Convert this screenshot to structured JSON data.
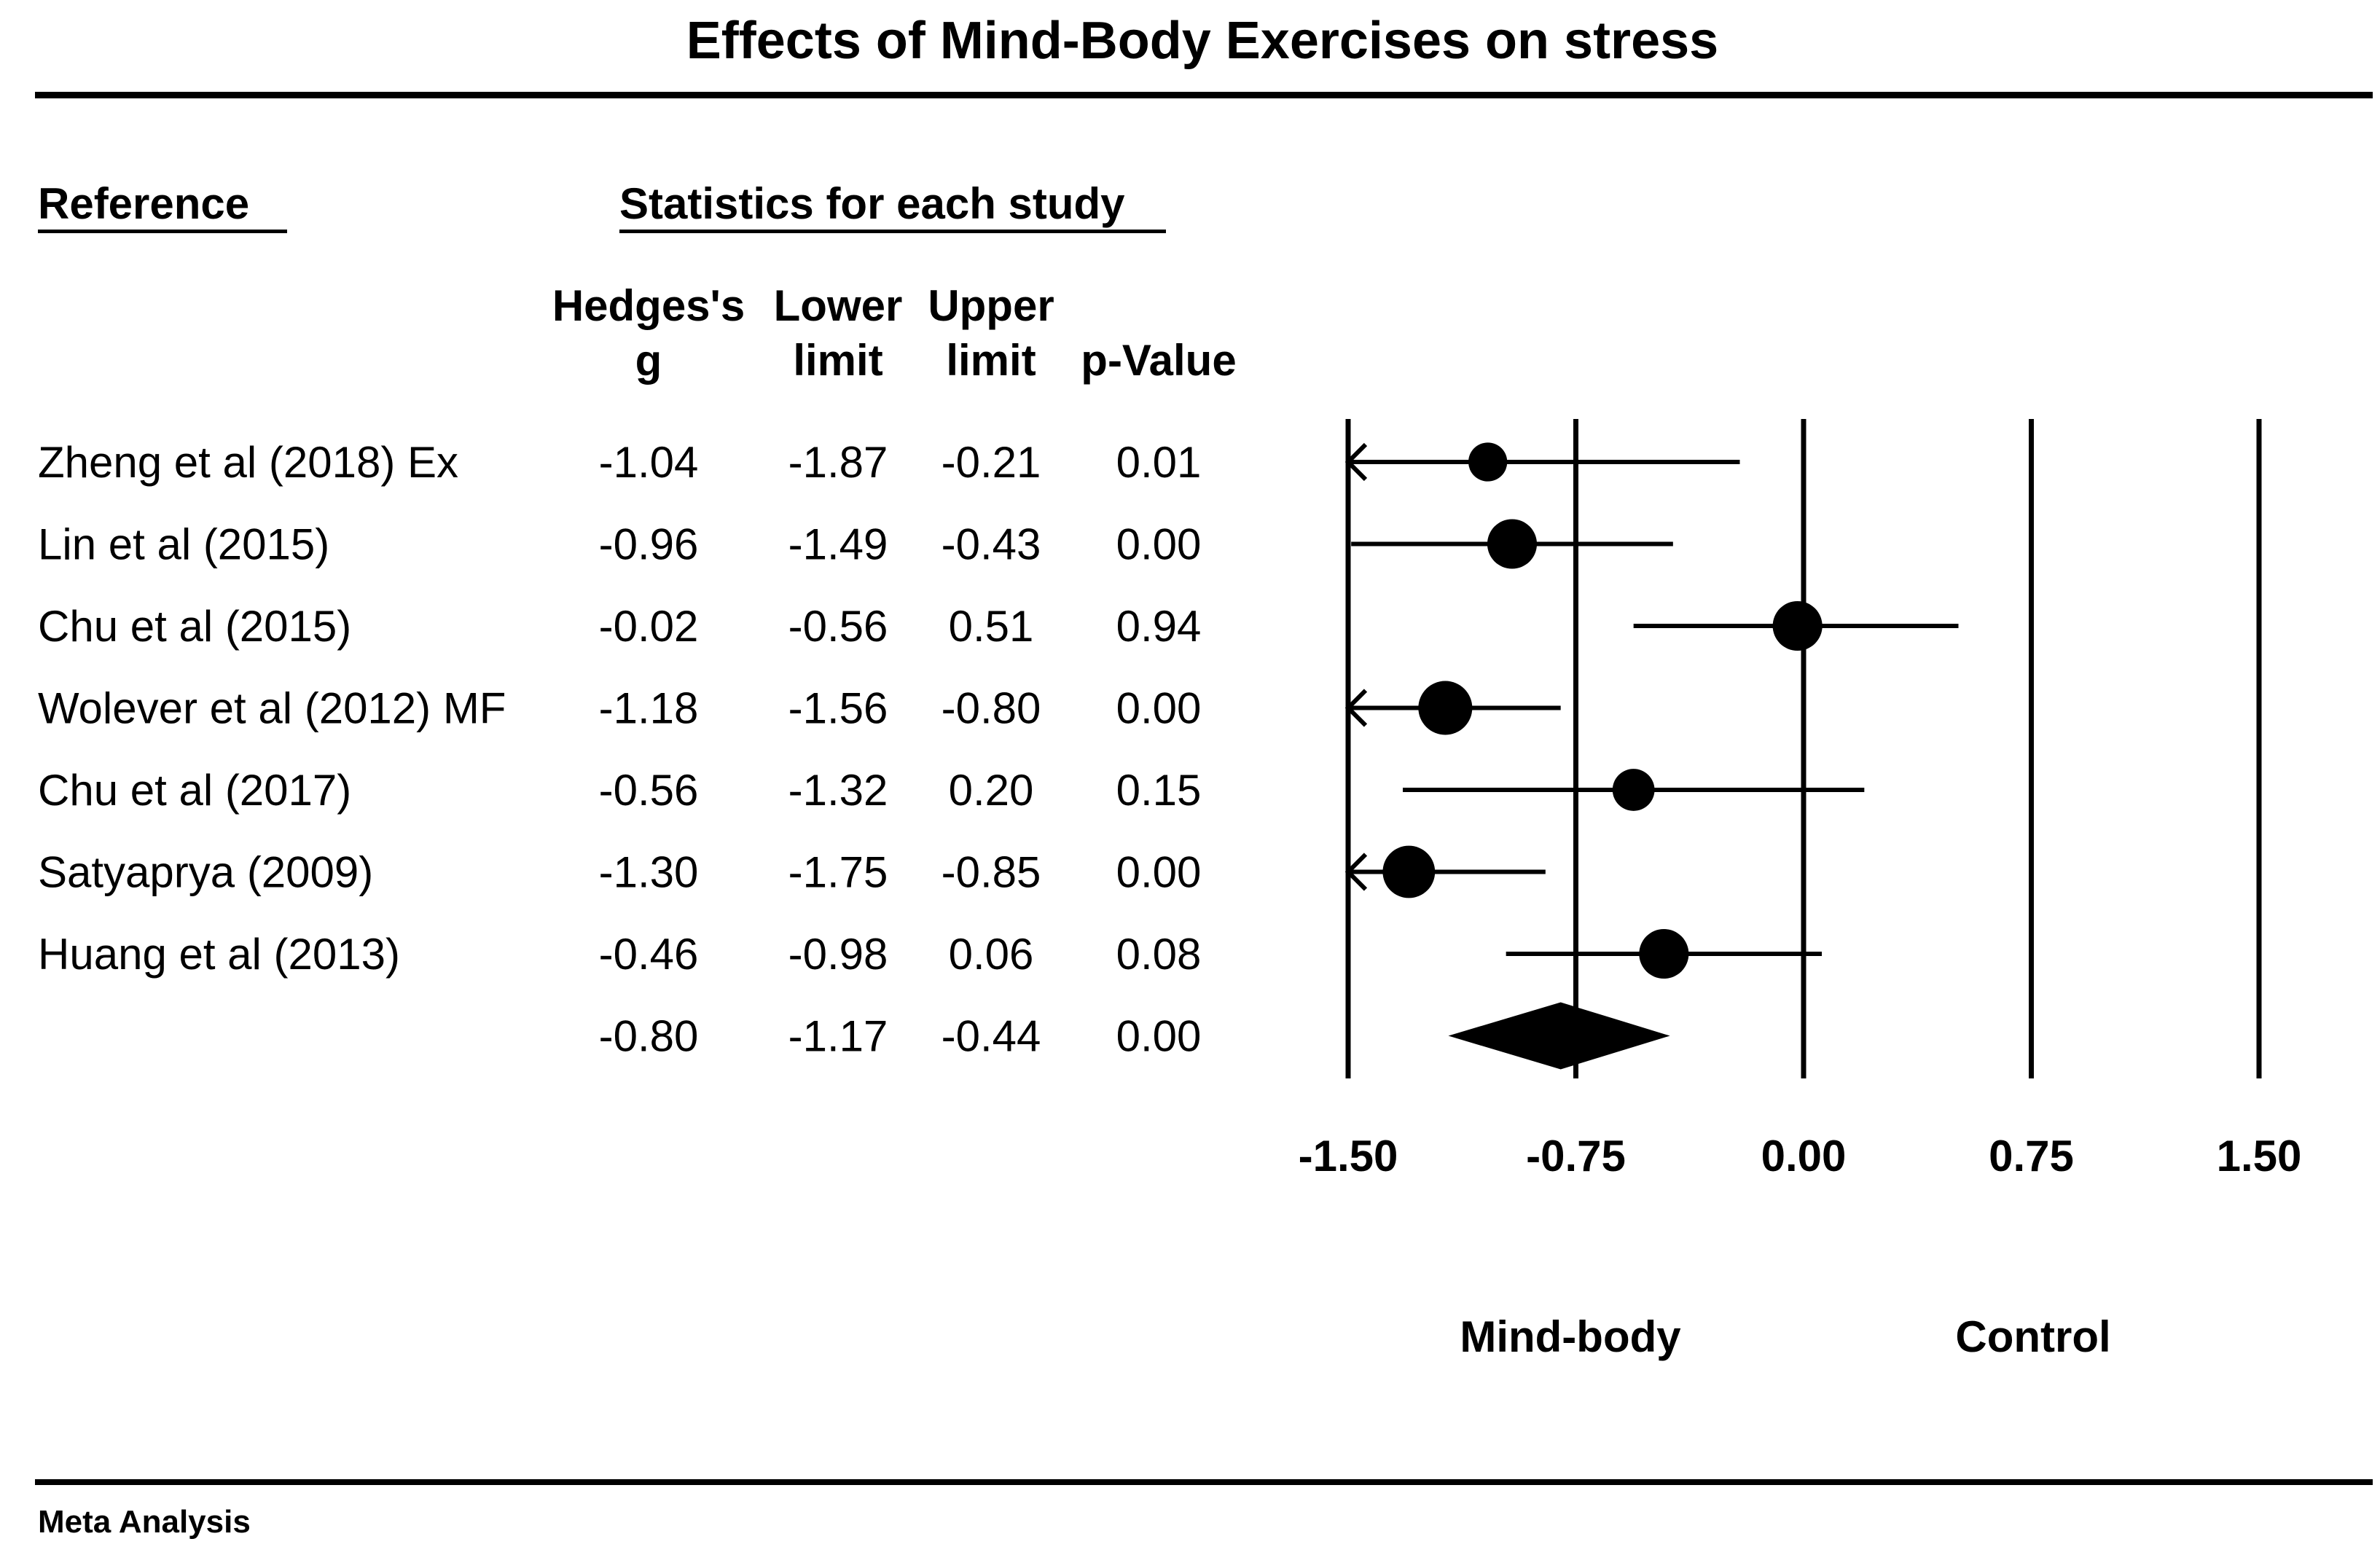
{
  "chart_data": {
    "type": "forest",
    "title": "Effects of Mind-Body Exercises on stress",
    "section_labels": {
      "reference": "Reference",
      "statistics": "Statistics for each study"
    },
    "columns": [
      {
        "key": "g",
        "line1": "Hedges's",
        "line2": "g"
      },
      {
        "key": "lower",
        "line1": "Lower",
        "line2": "limit"
      },
      {
        "key": "upper",
        "line1": "Upper",
        "line2": "limit"
      },
      {
        "key": "p",
        "line1": "",
        "line2": "p-Value"
      }
    ],
    "studies": [
      {
        "reference": "Zheng et al (2018) Ex",
        "g": "-1.04",
        "lower": "-1.87",
        "upper": "-0.21",
        "p": "0.01",
        "g_val": -1.04,
        "lower_val": -1.87,
        "upper_val": -0.21,
        "weight": 0.72
      },
      {
        "reference": "Lin et al (2015)",
        "g": "-0.96",
        "lower": "-1.49",
        "upper": "-0.43",
        "p": "0.00",
        "g_val": -0.96,
        "lower_val": -1.49,
        "upper_val": -0.43,
        "weight": 0.92
      },
      {
        "reference": "Chu et al (2015)",
        "g": "-0.02",
        "lower": "-0.56",
        "upper": "0.51",
        "p": "0.94",
        "g_val": -0.02,
        "lower_val": -0.56,
        "upper_val": 0.51,
        "weight": 0.92
      },
      {
        "reference": "Wolever et al (2012) MF",
        "g": "-1.18",
        "lower": "-1.56",
        "upper": "-0.80",
        "p": "0.00",
        "g_val": -1.18,
        "lower_val": -1.56,
        "upper_val": -0.8,
        "weight": 1.0
      },
      {
        "reference": "Chu et al (2017)",
        "g": "-0.56",
        "lower": "-1.32",
        "upper": "0.20",
        "p": "0.15",
        "g_val": -0.56,
        "lower_val": -1.32,
        "upper_val": 0.2,
        "weight": 0.78
      },
      {
        "reference": "Satyaprya (2009)",
        "g": "-1.30",
        "lower": "-1.75",
        "upper": "-0.85",
        "p": "0.00",
        "g_val": -1.3,
        "lower_val": -1.75,
        "upper_val": -0.85,
        "weight": 0.97
      },
      {
        "reference": "Huang et al (2013)",
        "g": "-0.46",
        "lower": "-0.98",
        "upper": "0.06",
        "p": "0.08",
        "g_val": -0.46,
        "lower_val": -0.98,
        "upper_val": 0.06,
        "weight": 0.92
      }
    ],
    "summary": {
      "g": "-0.80",
      "lower": "-1.17",
      "upper": "-0.44",
      "p": "0.00",
      "g_val": -0.8,
      "lower_val": -1.17,
      "upper_val": -0.44
    },
    "axis": {
      "xlim": [
        -1.5,
        1.5
      ],
      "ticks": [
        -1.5,
        -0.75,
        0.0,
        0.75,
        1.5
      ],
      "tick_labels": [
        "-1.50",
        "-0.75",
        "0.00",
        "0.75",
        "1.50"
      ]
    },
    "favors_left": "Mind-body",
    "favors_right": "Control",
    "footer": "Meta Analysis"
  },
  "colors": {
    "ink": "#000000",
    "background": "#ffffff"
  }
}
